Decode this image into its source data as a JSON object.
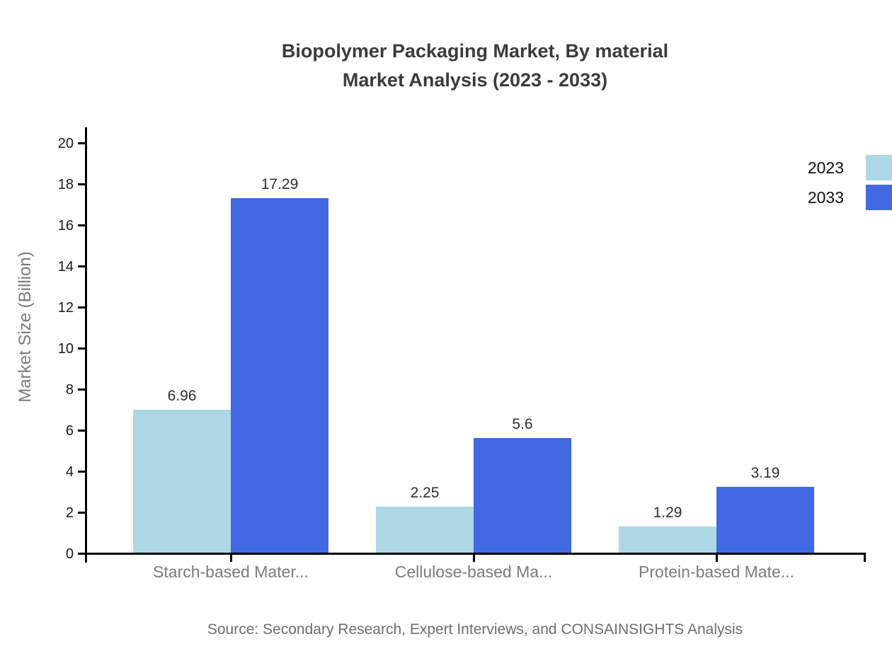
{
  "chart_data": {
    "type": "bar",
    "title": "Biopolymer Packaging Market, By material Market Analysis (2023 - 2033)",
    "title_lines": [
      "Biopolymer Packaging Market, By material",
      "Market Analysis (2023 - 2033)"
    ],
    "categories": [
      "Starch-based Mater...",
      "Cellulose-based Ma...",
      "Protein-based Mate..."
    ],
    "series": [
      {
        "name": "2023",
        "color": "#ADD8E6",
        "values": [
          6.96,
          2.25,
          1.29
        ]
      },
      {
        "name": "2033",
        "color": "#4169E1",
        "values": [
          17.29,
          5.6,
          3.19
        ]
      }
    ],
    "xlabel": "",
    "ylabel": "Market Size (Billion)",
    "ylim": [
      0,
      20
    ],
    "ytick_step": 2,
    "grid": false,
    "value_labels": true,
    "legend_position": "top-right",
    "source": "Source: Secondary Research, Expert Interviews, and CONSAINSIGHTS Analysis"
  },
  "colors": {
    "axis": "#000000",
    "title_text": "#3b3b3b",
    "category_text": "#7b7b7b",
    "source_text": "#6e6e6e"
  }
}
